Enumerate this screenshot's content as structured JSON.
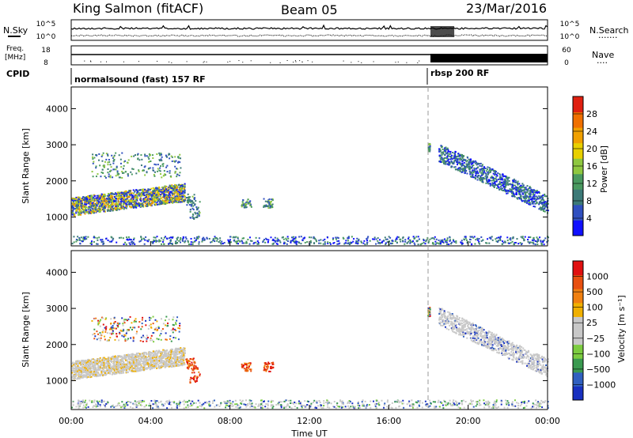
{
  "header": {
    "station": "King Salmon (fitACF)",
    "beam": "Beam 05",
    "date": "23/Mar/2016"
  },
  "panels": {
    "noise_left": "N.Sky",
    "noise_right": "N.Search",
    "noise_right_dots": "·······",
    "noise_ticks_left": [
      "10^5",
      "10^0"
    ],
    "noise_ticks_right": [
      "10^5",
      "10^0"
    ],
    "freq_label_1": "Freq.",
    "freq_label_2": "[MHz]",
    "freq_ticks": [
      "18",
      "8"
    ],
    "nave_ticks": [
      "60",
      "0"
    ],
    "nave_label": "Nave",
    "nave_dots": "····",
    "cpid_label": "CPID",
    "cpid_segments": [
      {
        "label": "normalsound (fast) 157 RF",
        "start_hour": 0
      },
      {
        "label": "rbsp 200 RF",
        "start_hour": 18
      }
    ]
  },
  "chart_data": [
    {
      "type": "heatmap",
      "name": "power",
      "ylabel": "Slant Range [km]",
      "x_range_hours": [
        0,
        24
      ],
      "ylim": [
        200,
        4600
      ],
      "yticks": [
        1000,
        2000,
        3000,
        4000
      ],
      "colorbar": {
        "label": "Power [dB]",
        "ticks": [
          "28",
          "24",
          "20",
          "16",
          "12",
          "8",
          "4"
        ],
        "colors": [
          "#1010ff",
          "#3050c0",
          "#3c7a78",
          "#4a9a60",
          "#8fc840",
          "#e8d000",
          "#f0a000",
          "#f07000",
          "#e02010"
        ]
      }
    },
    {
      "type": "heatmap",
      "name": "velocity",
      "ylabel": "Slant Range [km]",
      "x_range_hours": [
        0,
        24
      ],
      "ylim": [
        200,
        4600
      ],
      "yticks": [
        1000,
        2000,
        3000,
        4000
      ],
      "colorbar": {
        "label": "Velocity [m s⁻¹]",
        "ticks": [
          "1000",
          "500",
          "100",
          "25",
          "−25",
          "−100",
          "−500",
          "−1000"
        ],
        "colors": [
          "#e01010",
          "#e85010",
          "#f08010",
          "#f0b000",
          "#c8c8c8",
          "#c8c8c8",
          "#7ccc40",
          "#3a9a50",
          "#3060c0",
          "#1830c0"
        ]
      }
    }
  ],
  "xaxis": {
    "label": "Time UT",
    "ticks": [
      "00:00",
      "04:00",
      "08:00",
      "12:00",
      "16:00",
      "20:00",
      "00:00"
    ]
  }
}
